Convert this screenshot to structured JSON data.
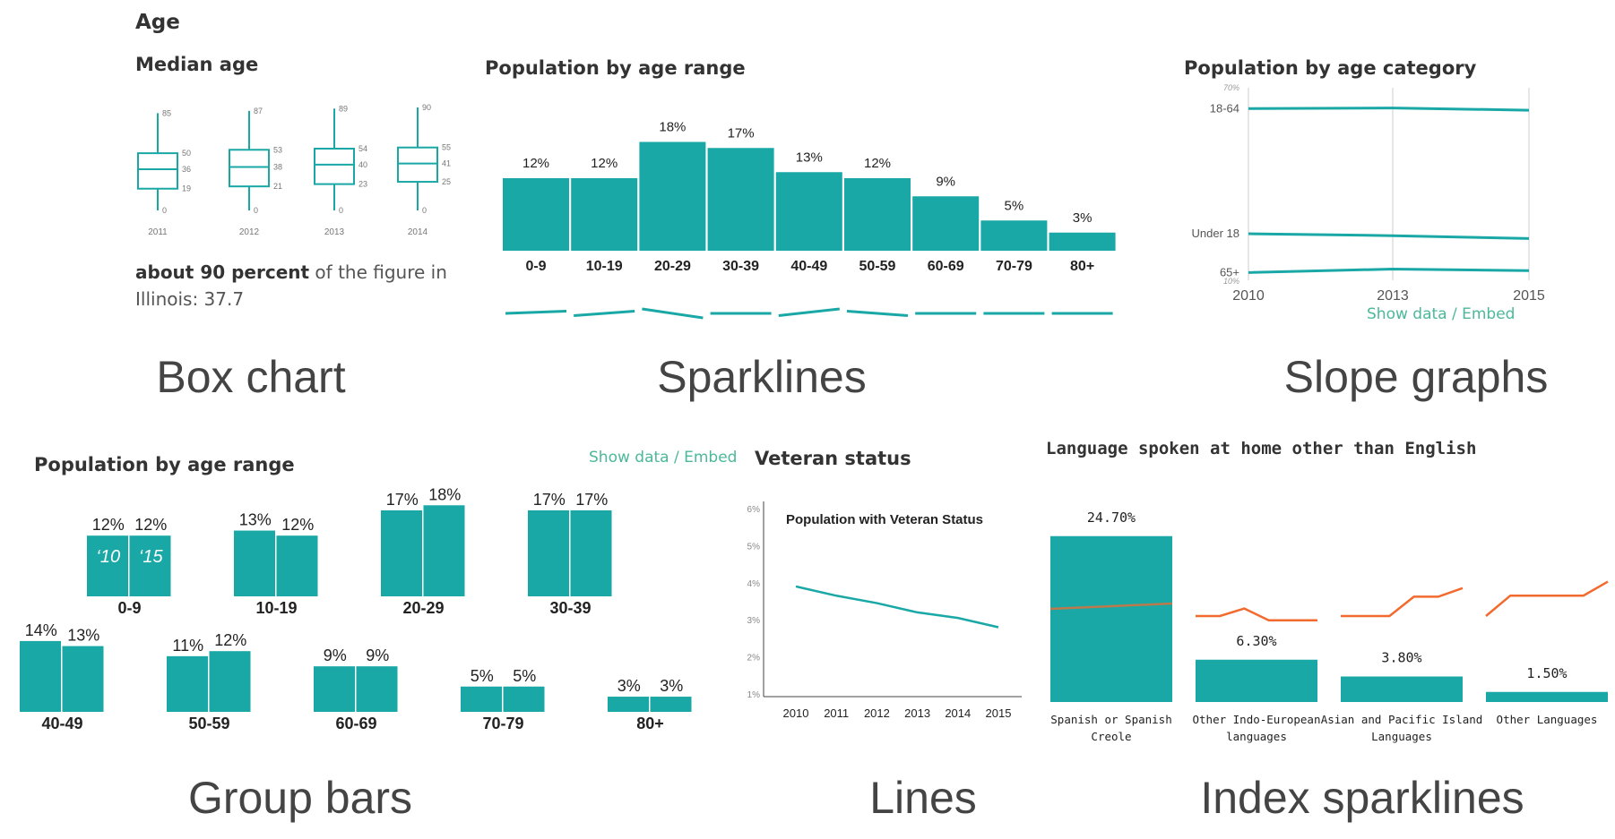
{
  "section_title": "Age",
  "captions": {
    "box": "Box chart",
    "spark": "Sparklines",
    "slope": "Slope graphs",
    "group": "Group bars",
    "lines": "Lines",
    "index": "Index sparklines"
  },
  "links": {
    "show_data_embed": "Show data / Embed"
  },
  "box_note": {
    "bold": "about 90 percent",
    "rest": " of the figure in",
    "line2": "Illinois: 37.7"
  },
  "colors": {
    "teal": "#1aa8a6",
    "orange": "#f26a2e",
    "gray": "#cccccc"
  },
  "chart_data": [
    {
      "id": "box",
      "type": "box",
      "title": "Median age",
      "categories": [
        "2011",
        "2012",
        "2013",
        "2014"
      ],
      "boxes": [
        {
          "min": 0,
          "q1": 19,
          "median": 36,
          "q3": 50,
          "max": 85
        },
        {
          "min": 0,
          "q1": 21,
          "median": 38,
          "q3": 53,
          "max": 87
        },
        {
          "min": 0,
          "q1": 23,
          "median": 40,
          "q3": 54,
          "max": 89
        },
        {
          "min": 0,
          "q1": 25,
          "median": 41,
          "q3": 55,
          "max": 90
        }
      ],
      "ylim": [
        0,
        90
      ]
    },
    {
      "id": "spark",
      "type": "bar",
      "title": "Population by age range",
      "categories": [
        "0-9",
        "10-19",
        "20-29",
        "30-39",
        "40-49",
        "50-59",
        "60-69",
        "70-79",
        "80+"
      ],
      "values": [
        12,
        12,
        18,
        17,
        13,
        12,
        9,
        5,
        3
      ],
      "labels": [
        "12%",
        "12%",
        "18%",
        "17%",
        "13%",
        "12%",
        "9%",
        "5%",
        "3%"
      ],
      "sparklines": [
        [
          0,
          -1
        ],
        [
          1,
          -1
        ],
        [
          -2,
          2
        ],
        [
          0,
          0
        ],
        [
          1,
          -2
        ],
        [
          -1,
          1
        ],
        [
          0,
          0
        ],
        [
          0,
          0
        ],
        [
          0,
          0
        ]
      ],
      "ylim": [
        0,
        20
      ]
    },
    {
      "id": "slope",
      "type": "line",
      "title": "Population by age category",
      "x": [
        "2010",
        "2013",
        "2015"
      ],
      "series": [
        {
          "label": "18-64",
          "values": [
            63.5,
            63.7,
            63.0
          ]
        },
        {
          "label": "Under 18",
          "values": [
            24.5,
            23.9,
            23.0
          ]
        },
        {
          "label": "65+",
          "values": [
            12.4,
            13.5,
            13.0
          ]
        }
      ],
      "ylim": [
        10,
        70
      ],
      "y_tick_labels": [
        "70%",
        "10%"
      ]
    },
    {
      "id": "group",
      "type": "bar",
      "title": "Population by age range",
      "categories": [
        "0-9",
        "10-19",
        "20-29",
        "30-39",
        "40-49",
        "50-59",
        "60-69",
        "70-79",
        "80+"
      ],
      "series_labels": [
        "‘10",
        "‘15"
      ],
      "series": [
        {
          "values": [
            12,
            13,
            17,
            17,
            14,
            11,
            9,
            5,
            3
          ],
          "labels": [
            "12%",
            "13%",
            "17%",
            "17%",
            "14%",
            "11%",
            "9%",
            "5%",
            "3%"
          ]
        },
        {
          "values": [
            12,
            12,
            18,
            17,
            13,
            12,
            9,
            5,
            3
          ],
          "labels": [
            "12%",
            "12%",
            "18%",
            "17%",
            "13%",
            "12%",
            "9%",
            "5%",
            "3%"
          ]
        }
      ]
    },
    {
      "id": "lines",
      "type": "line",
      "title": "Veteran status",
      "subtitle": "Population with Veteran Status",
      "x": [
        "2010",
        "2011",
        "2012",
        "2013",
        "2014",
        "2015"
      ],
      "values": [
        3.9,
        3.65,
        3.45,
        3.2,
        3.05,
        2.8
      ],
      "yticks": [
        1,
        2,
        3,
        4,
        5,
        6
      ],
      "ytick_labels": [
        "1%",
        "2%",
        "3%",
        "4%",
        "5%",
        "6%"
      ],
      "ylim": [
        1,
        6
      ]
    },
    {
      "id": "index",
      "type": "bar",
      "title": "Language spoken at home other than English",
      "categories": [
        "Spanish or Spanish Creole",
        "Other Indo-European languages",
        "Asian and Pacific Island Languages",
        "Other Languages"
      ],
      "category_lines": [
        [
          "Spanish or Spanish",
          "Creole"
        ],
        [
          "Other Indo-European",
          "languages"
        ],
        [
          "Asian and Pacific Island",
          "Languages"
        ],
        [
          "Other Languages"
        ]
      ],
      "values": [
        24.7,
        6.3,
        3.8,
        1.5
      ],
      "labels": [
        "24.70%",
        "6.30%",
        "3.80%",
        "1.50%"
      ],
      "index_lines": [
        [
          0,
          0.1,
          0.2,
          0.3,
          0.4,
          0.5
        ],
        [
          0,
          0,
          0.7,
          -0.4,
          -0.4,
          -0.4
        ],
        [
          0,
          0,
          0,
          1.8,
          1.8,
          2.6
        ],
        [
          0,
          1.9,
          1.9,
          1.9,
          1.9,
          3.2
        ]
      ]
    }
  ]
}
